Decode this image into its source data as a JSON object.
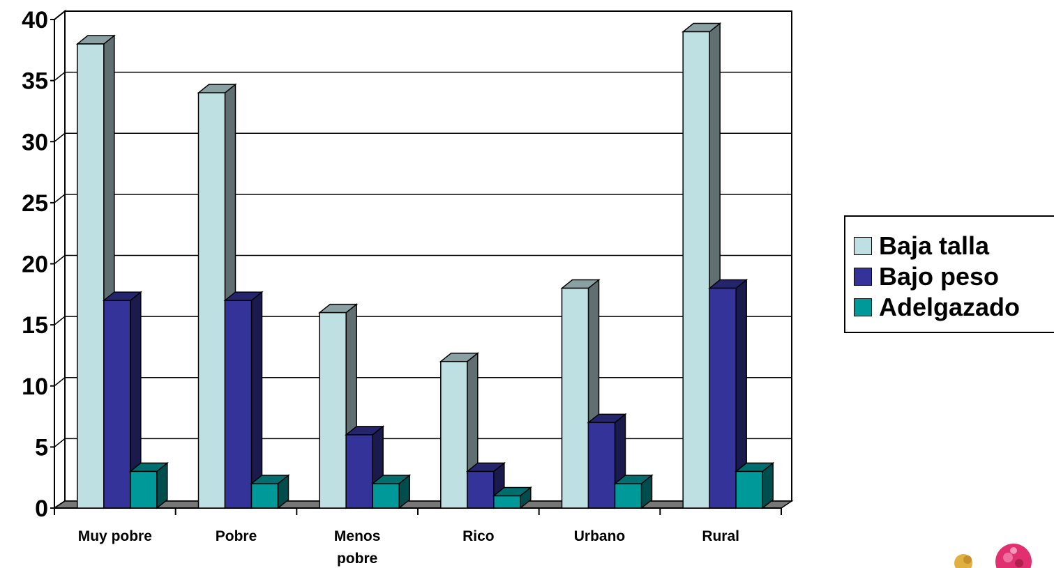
{
  "chart_data": {
    "type": "bar",
    "categories": [
      "Muy pobre",
      "Pobre",
      "Menos pobre",
      "Rico",
      "Urbano",
      "Rural"
    ],
    "series": [
      {
        "name": "Baja talla",
        "values": [
          38,
          34,
          16,
          12,
          18,
          39
        ],
        "color": "#bfe0e3"
      },
      {
        "name": "Bajo peso",
        "values": [
          17,
          17,
          6,
          3,
          7,
          18
        ],
        "color": "#333399"
      },
      {
        "name": "Adelgazado",
        "values": [
          3,
          2,
          2,
          1,
          2,
          3
        ],
        "color": "#009999"
      }
    ],
    "y_ticks": [
      "0",
      "5",
      "10",
      "15",
      "20",
      "25",
      "30",
      "35",
      "40"
    ],
    "ylim": [
      0,
      40
    ],
    "grid": true,
    "legend_position": "right",
    "title": "",
    "xlabel": "",
    "ylabel": ""
  }
}
